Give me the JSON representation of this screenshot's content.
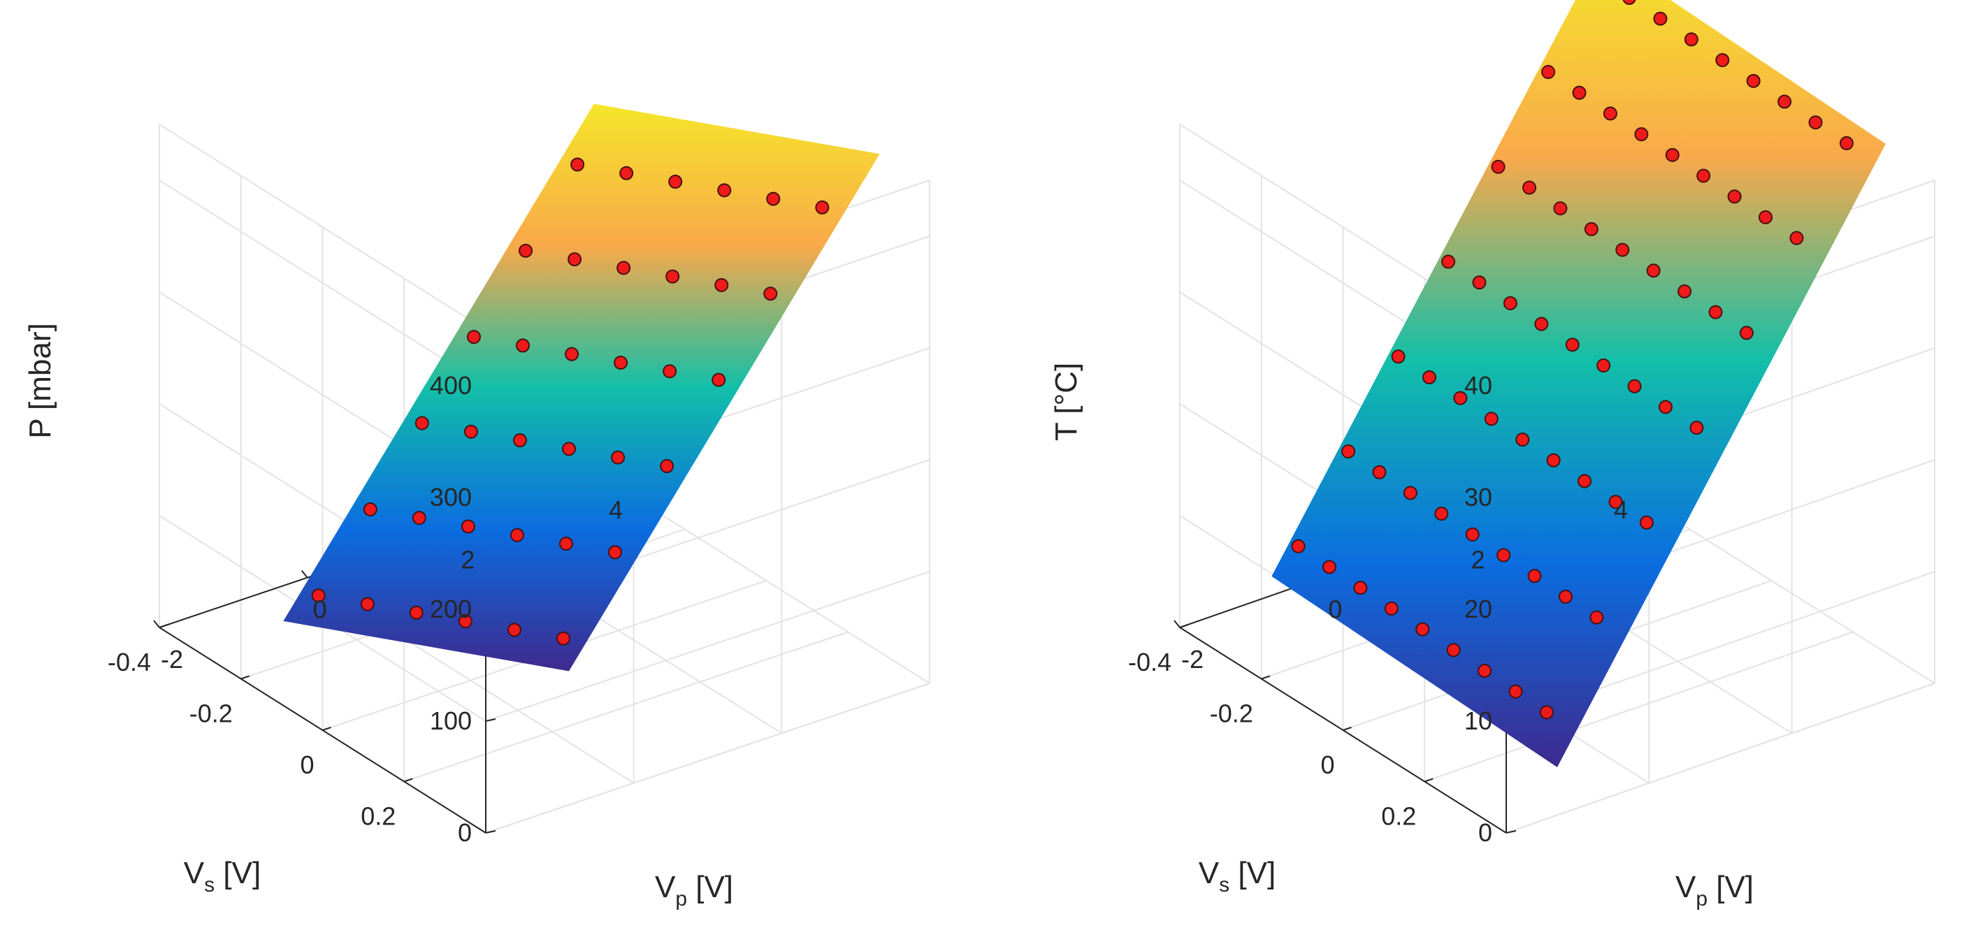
{
  "colors": {
    "surface_low": "#3e2a8f",
    "surface_mid_low": "#0b6de0",
    "surface_mid": "#12bfa8",
    "surface_mid_high": "#f9a94a",
    "surface_high": "#f5e62a",
    "marker_fill": "#ef1b1b",
    "marker_edge": "#4a1010",
    "axis": "#262626",
    "grid": "#e3e3e3"
  },
  "chart_data": [
    {
      "type": "scatter",
      "subtype": "3d-surface-with-points",
      "title": "",
      "xlabel": "V",
      "xlabel_sub": "p",
      "xlabel_unit": " [V]",
      "ylabel": "V",
      "ylabel_sub": "s",
      "ylabel_unit": " [V]",
      "zlabel": "P [mbar]",
      "xlim": [
        -2,
        4
      ],
      "ylim": [
        -0.4,
        0.4
      ],
      "zlim": [
        0,
        400
      ],
      "xticks": [
        "-2",
        "0",
        "2",
        "4"
      ],
      "yticks": [
        "-0.4",
        "-0.2",
        "0",
        "0.2"
      ],
      "zticks": [
        "0",
        "100",
        "200",
        "300",
        "400"
      ],
      "surface": {
        "x": [
          -0.6,
          3.6
        ],
        "y": [
          -0.35,
          0.35
        ],
        "z_corners": [
          [
            -14,
            102
          ],
          [
            355,
            471
          ]
        ]
      },
      "points": {
        "x_levels": [
          -0.4,
          0.3,
          1.0,
          1.7,
          2.4,
          3.1
        ],
        "y_levels": [
          -0.3,
          -0.18,
          -0.06,
          0.06,
          0.18,
          0.3
        ]
      }
    },
    {
      "type": "scatter",
      "subtype": "3d-surface-with-points",
      "title": "",
      "xlabel": "V",
      "xlabel_sub": "p",
      "xlabel_unit": " [V]",
      "ylabel": "V",
      "ylabel_sub": "s",
      "ylabel_unit": " [V]",
      "zlabel": "T [°C]",
      "xlim": [
        -2,
        4
      ],
      "ylim": [
        -0.4,
        0.4
      ],
      "zlim": [
        0,
        40
      ],
      "xticks": [
        "-2",
        "0",
        "2",
        "4"
      ],
      "yticks": [
        "-0.4",
        "-0.2",
        "0",
        "0.2"
      ],
      "zticks": [
        "0",
        "10",
        "20",
        "30",
        "40"
      ],
      "surface": {
        "x": [
          -1.0,
          3.6
        ],
        "y": [
          -0.35,
          0.35
        ],
        "z_corners": [
          [
            3.5,
            2.5
          ],
          [
            49,
            48
          ]
        ]
      },
      "points": {
        "z_levels": [
          5,
          12,
          19,
          26,
          33,
          40,
          47
        ],
        "x_levels": [
          -0.6,
          -0.1,
          0.4,
          0.9,
          1.4,
          1.9,
          2.4,
          2.9,
          3.4
        ]
      }
    }
  ]
}
